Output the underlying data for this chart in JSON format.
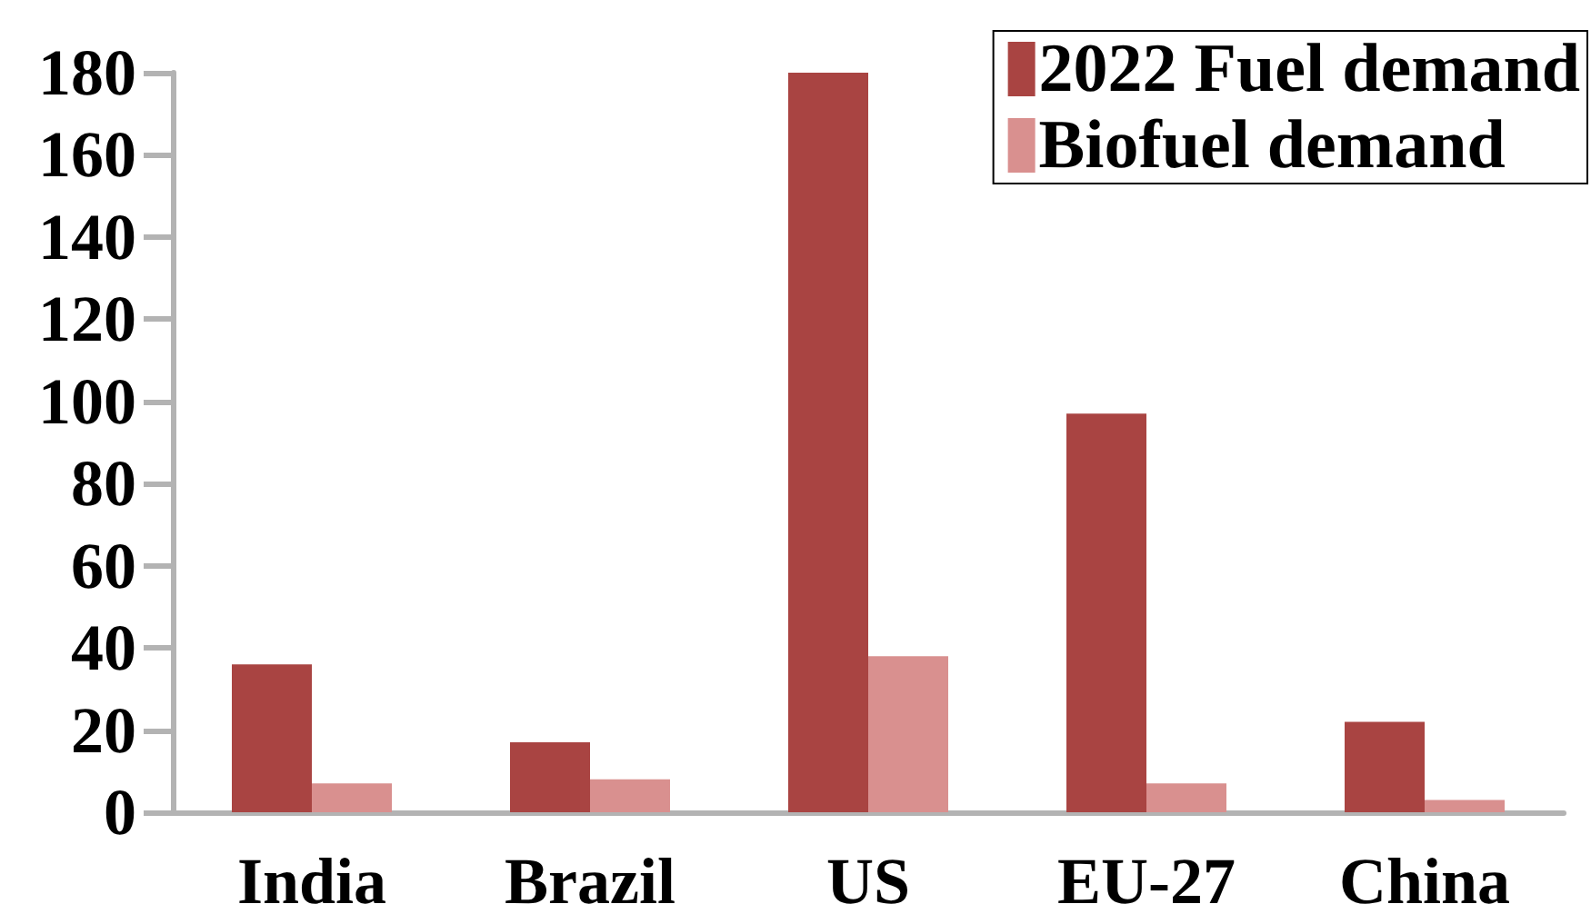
{
  "chart_data": {
    "type": "bar",
    "categories": [
      "India",
      "Brazil",
      "US",
      "EU-27",
      "China"
    ],
    "series": [
      {
        "name": "2022 Fuel demand",
        "color": "#a94442",
        "values": [
          36,
          17,
          180,
          97,
          22
        ]
      },
      {
        "name": "Biofuel demand",
        "color": "#d9908f",
        "values": [
          7,
          8,
          38,
          7,
          3
        ]
      }
    ],
    "ylim": [
      0,
      180
    ],
    "yticks": [
      0,
      20,
      40,
      60,
      80,
      100,
      120,
      140,
      160,
      180
    ],
    "grid": false,
    "legend": "top right"
  }
}
